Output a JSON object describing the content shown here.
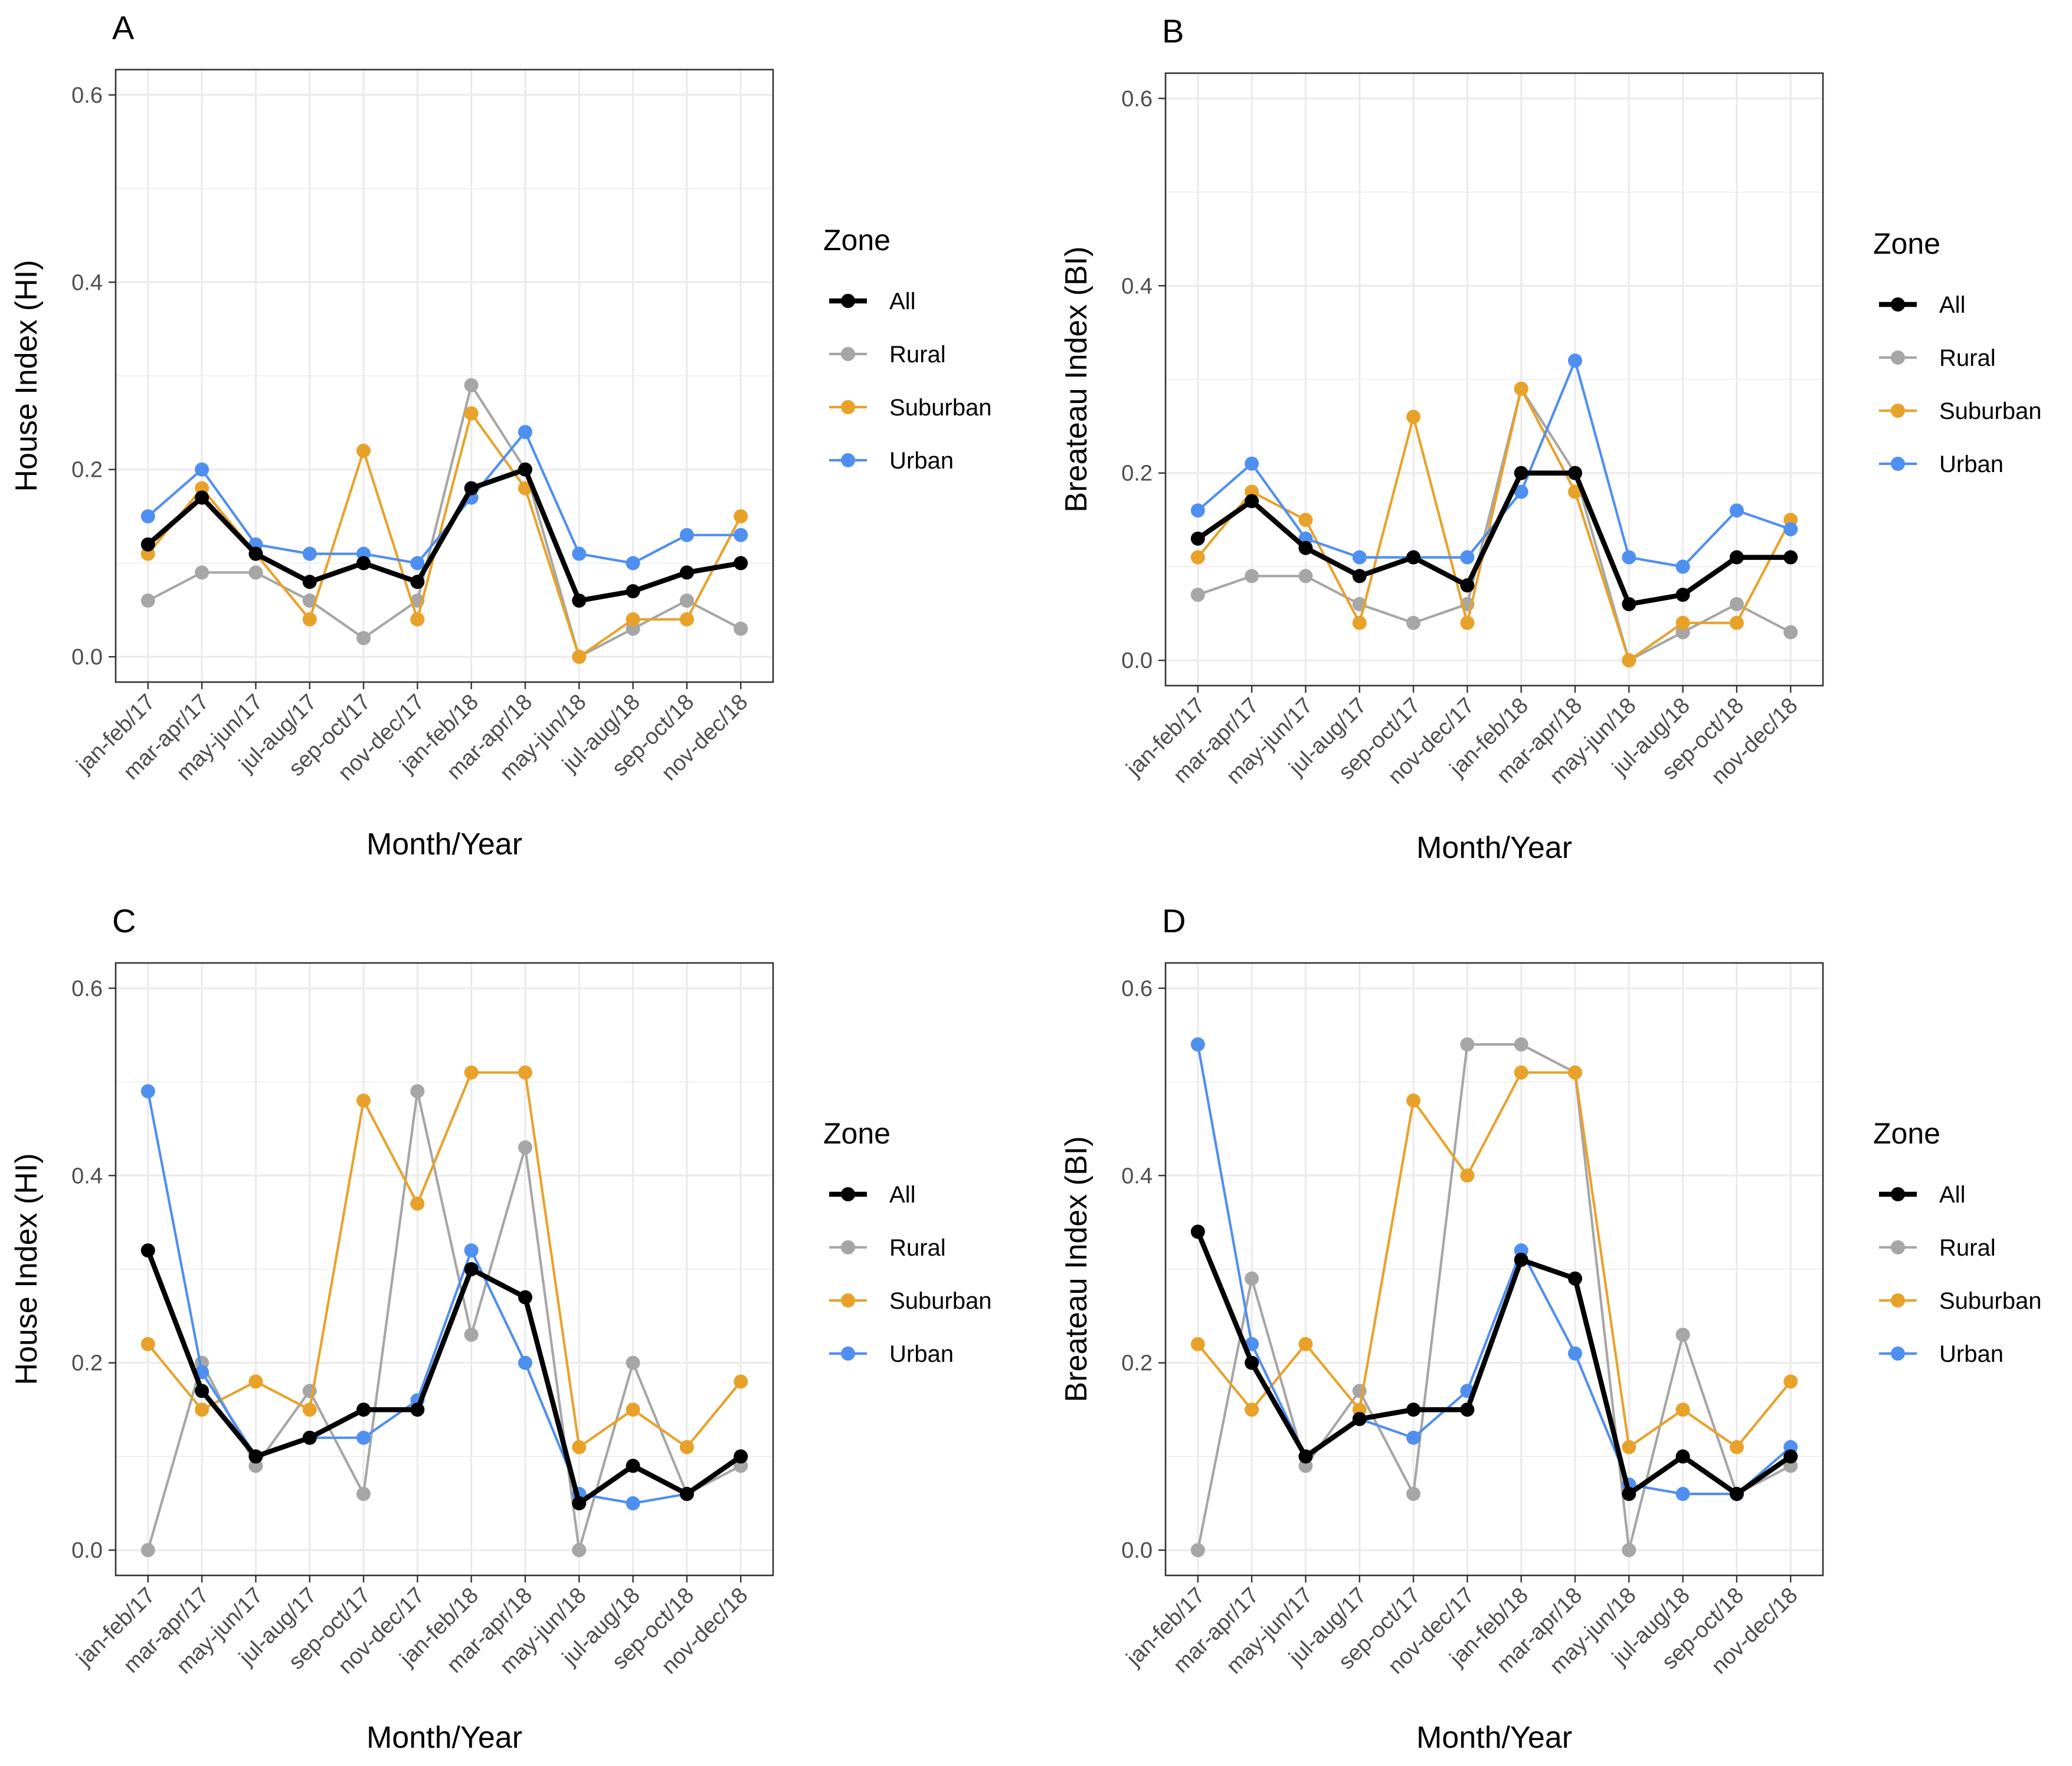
{
  "colors": {
    "All": "#000000",
    "Rural": "#a6a6a6",
    "Suburban": "#e8a22a",
    "Urban": "#4f8ff0"
  },
  "chart_data": [
    {
      "type": "line",
      "panel": "A",
      "ylabel": "House Index (HI)",
      "xlabel": "Month/Year",
      "ylim": [
        0,
        0.6
      ],
      "yticks": [
        "0.0",
        "0.2",
        "0.4",
        "0.6"
      ],
      "categories": [
        "jan-feb/17",
        "mar-apr/17",
        "may-jun/17",
        "jul-aug/17",
        "sep-oct/17",
        "nov-dec/17",
        "jan-feb/18",
        "mar-apr/18",
        "may-jun/18",
        "jul-aug/18",
        "sep-oct/18",
        "nov-dec/18"
      ],
      "legend": {
        "title": "Zone",
        "position": "right"
      },
      "series": [
        {
          "name": "Rural",
          "values": [
            0.06,
            0.09,
            0.09,
            0.06,
            0.02,
            0.06,
            0.29,
            0.2,
            0.0,
            0.03,
            0.06,
            0.03
          ]
        },
        {
          "name": "Suburban",
          "values": [
            0.11,
            0.18,
            0.11,
            0.04,
            0.22,
            0.04,
            0.26,
            0.18,
            0.0,
            0.04,
            0.04,
            0.15
          ]
        },
        {
          "name": "Urban",
          "values": [
            0.15,
            0.2,
            0.12,
            0.11,
            0.11,
            0.1,
            0.17,
            0.24,
            0.11,
            0.1,
            0.13,
            0.13
          ]
        },
        {
          "name": "All",
          "values": [
            0.12,
            0.17,
            0.11,
            0.08,
            0.1,
            0.08,
            0.18,
            0.2,
            0.06,
            0.07,
            0.09,
            0.1
          ]
        }
      ]
    },
    {
      "type": "line",
      "panel": "B",
      "ylabel": "Breateau Index (BI)",
      "xlabel": "Month/Year",
      "ylim": [
        0,
        0.6
      ],
      "yticks": [
        "0.0",
        "0.2",
        "0.4",
        "0.6"
      ],
      "categories": [
        "jan-feb/17",
        "mar-apr/17",
        "may-jun/17",
        "jul-aug/17",
        "sep-oct/17",
        "nov-dec/17",
        "jan-feb/18",
        "mar-apr/18",
        "may-jun/18",
        "jul-aug/18",
        "sep-oct/18",
        "nov-dec/18"
      ],
      "legend": {
        "title": "Zone",
        "position": "right"
      },
      "series": [
        {
          "name": "Rural",
          "values": [
            0.07,
            0.09,
            0.09,
            0.06,
            0.04,
            0.06,
            0.29,
            0.2,
            0.0,
            0.03,
            0.06,
            0.03
          ]
        },
        {
          "name": "Suburban",
          "values": [
            0.11,
            0.18,
            0.15,
            0.04,
            0.26,
            0.04,
            0.29,
            0.18,
            0.0,
            0.04,
            0.04,
            0.15
          ]
        },
        {
          "name": "Urban",
          "values": [
            0.16,
            0.21,
            0.13,
            0.11,
            0.11,
            0.11,
            0.18,
            0.32,
            0.11,
            0.1,
            0.16,
            0.14
          ]
        },
        {
          "name": "All",
          "values": [
            0.13,
            0.17,
            0.12,
            0.09,
            0.11,
            0.08,
            0.2,
            0.2,
            0.06,
            0.07,
            0.11,
            0.11
          ]
        }
      ]
    },
    {
      "type": "line",
      "panel": "C",
      "ylabel": "House Index (HI)",
      "xlabel": "Month/Year",
      "ylim": [
        0,
        0.6
      ],
      "yticks": [
        "0.0",
        "0.2",
        "0.4",
        "0.6"
      ],
      "categories": [
        "jan-feb/17",
        "mar-apr/17",
        "may-jun/17",
        "jul-aug/17",
        "sep-oct/17",
        "nov-dec/17",
        "jan-feb/18",
        "mar-apr/18",
        "may-jun/18",
        "jul-aug/18",
        "sep-oct/18",
        "nov-dec/18"
      ],
      "legend": {
        "title": "Zone",
        "position": "right"
      },
      "series": [
        {
          "name": "Rural",
          "values": [
            0.0,
            0.2,
            0.09,
            0.17,
            0.06,
            0.49,
            0.23,
            0.43,
            0.0,
            0.2,
            0.06,
            0.09
          ]
        },
        {
          "name": "Suburban",
          "values": [
            0.22,
            0.15,
            0.18,
            0.15,
            0.48,
            0.37,
            0.51,
            0.51,
            0.11,
            0.15,
            0.11,
            0.18
          ]
        },
        {
          "name": "Urban",
          "values": [
            0.49,
            0.19,
            0.1,
            0.12,
            0.12,
            0.16,
            0.32,
            0.2,
            0.06,
            0.05,
            0.06,
            0.1
          ]
        },
        {
          "name": "All",
          "values": [
            0.32,
            0.17,
            0.1,
            0.12,
            0.15,
            0.15,
            0.3,
            0.27,
            0.05,
            0.09,
            0.06,
            0.1
          ]
        }
      ]
    },
    {
      "type": "line",
      "panel": "D",
      "ylabel": "Breateau Index (BI)",
      "xlabel": "Month/Year",
      "ylim": [
        0,
        0.6
      ],
      "yticks": [
        "0.0",
        "0.2",
        "0.4",
        "0.6"
      ],
      "categories": [
        "jan-feb/17",
        "mar-apr/17",
        "may-jun/17",
        "jul-aug/17",
        "sep-oct/17",
        "nov-dec/17",
        "jan-feb/18",
        "mar-apr/18",
        "may-jun/18",
        "jul-aug/18",
        "sep-oct/18",
        "nov-dec/18"
      ],
      "legend": {
        "title": "Zone",
        "position": "right"
      },
      "series": [
        {
          "name": "Rural",
          "values": [
            0.0,
            0.29,
            0.09,
            0.17,
            0.06,
            0.54,
            0.54,
            0.51,
            0.0,
            0.23,
            0.06,
            0.09
          ]
        },
        {
          "name": "Suburban",
          "values": [
            0.22,
            0.15,
            0.22,
            0.15,
            0.48,
            0.4,
            0.51,
            0.51,
            0.11,
            0.15,
            0.11,
            0.18
          ]
        },
        {
          "name": "Urban",
          "values": [
            0.54,
            0.22,
            0.1,
            0.14,
            0.12,
            0.17,
            0.32,
            0.21,
            0.07,
            0.06,
            0.06,
            0.11
          ]
        },
        {
          "name": "All",
          "values": [
            0.34,
            0.2,
            0.1,
            0.14,
            0.15,
            0.15,
            0.31,
            0.29,
            0.06,
            0.1,
            0.06,
            0.1
          ]
        }
      ]
    }
  ]
}
